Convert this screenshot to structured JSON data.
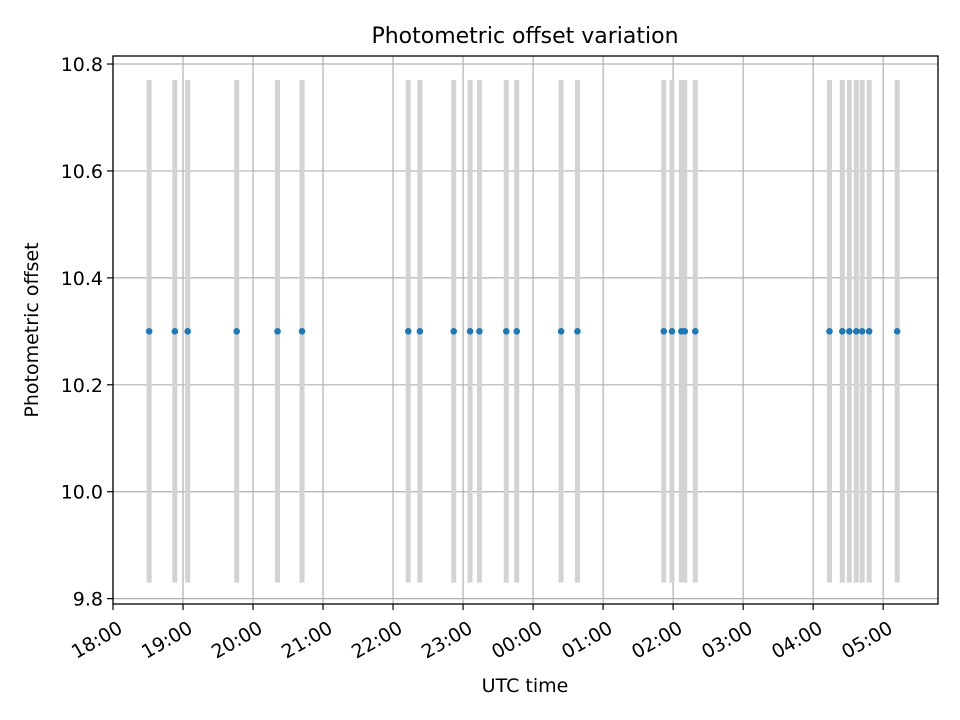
{
  "chart_data": {
    "type": "scatter",
    "title": "Photometric offset variation",
    "xlabel": "UTC time",
    "ylabel": "Photometric offset",
    "x_ticks": [
      "18:00",
      "19:00",
      "20:00",
      "21:00",
      "22:00",
      "23:00",
      "00:00",
      "01:00",
      "02:00",
      "03:00",
      "04:00",
      "05:00"
    ],
    "y_ticks": [
      "9.8",
      "10.0",
      "10.2",
      "10.4",
      "10.6",
      "10.8"
    ],
    "xlim": [
      "18:00",
      "05:47"
    ],
    "ylim": [
      9.79,
      10.815
    ],
    "grid": true,
    "error_range": [
      9.83,
      10.77
    ],
    "x": [
      "18:31",
      "18:53",
      "19:04",
      "19:46",
      "20:21",
      "20:42",
      "22:13",
      "22:23",
      "22:52",
      "23:06",
      "23:14",
      "23:37",
      "23:46",
      "00:24",
      "00:38",
      "01:52",
      "01:59",
      "02:07",
      "02:10",
      "02:19",
      "04:14",
      "04:25",
      "04:31",
      "04:37",
      "04:42",
      "04:48",
      "05:12"
    ],
    "values": [
      10.3,
      10.3,
      10.3,
      10.3,
      10.3,
      10.3,
      10.3,
      10.3,
      10.3,
      10.3,
      10.3,
      10.3,
      10.3,
      10.3,
      10.3,
      10.3,
      10.3,
      10.3,
      10.3,
      10.3,
      10.3,
      10.3,
      10.3,
      10.3,
      10.3,
      10.3,
      10.3
    ],
    "colors": {
      "point": "#1f77b4",
      "errorbar": "#d3d3d3",
      "grid": "#b0b0b0",
      "axes": "#000000"
    }
  }
}
